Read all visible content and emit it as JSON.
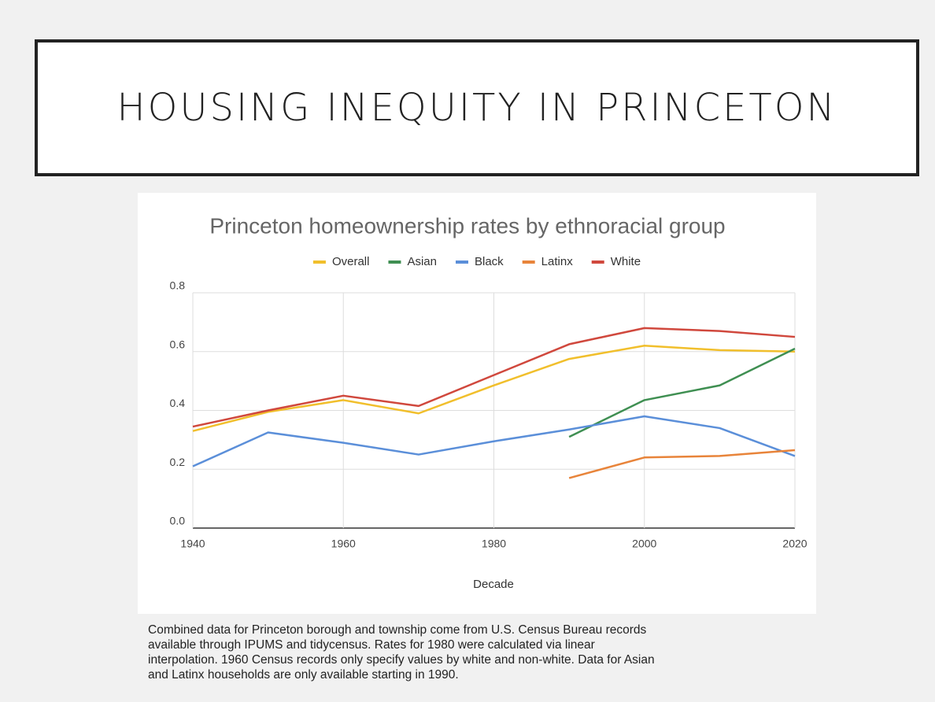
{
  "header": {
    "title": "HOUSING INEQUITY IN PRINCETON"
  },
  "chart_data": {
    "type": "line",
    "title": "Princeton homeownership rates by ethnoracial group",
    "x_label": "Decade",
    "x": [
      1940,
      1950,
      1960,
      1970,
      1980,
      1990,
      2000,
      2010,
      2020
    ],
    "xlim": [
      1940,
      2020
    ],
    "xticks": [
      1940,
      1960,
      1980,
      2000,
      2020
    ],
    "ylim": [
      0,
      0.8
    ],
    "yticks": [
      {
        "value": 0,
        "label": "0.0"
      },
      0.2,
      0.4,
      0.6,
      0.8
    ],
    "grid": true,
    "legend": "top",
    "series": [
      {
        "name": "Overall",
        "color": "#f1bf2c",
        "values": [
          0.33,
          0.395,
          0.435,
          0.39,
          0.485,
          0.575,
          0.62,
          0.605,
          0.6
        ]
      },
      {
        "name": "Asian",
        "color": "#3f8f52",
        "values": [
          null,
          null,
          null,
          null,
          null,
          0.31,
          0.435,
          0.485,
          0.61
        ]
      },
      {
        "name": "Black",
        "color": "#5b8fd9",
        "values": [
          0.21,
          0.325,
          0.29,
          0.25,
          0.295,
          0.335,
          0.38,
          0.34,
          0.245
        ]
      },
      {
        "name": "Latinx",
        "color": "#e8843a",
        "values": [
          null,
          null,
          null,
          null,
          null,
          0.17,
          0.24,
          0.245,
          0.265
        ]
      },
      {
        "name": "White",
        "color": "#d0483d",
        "values": [
          0.345,
          0.4,
          0.45,
          0.415,
          0.52,
          0.625,
          0.68,
          0.67,
          0.65
        ]
      }
    ]
  },
  "caption": {
    "lines": [
      "Combined data for Princeton borough and township come from U.S. Census Bureau records",
      "available through IPUMS and tidycensus. Rates for 1980 were calculated via linear",
      "interpolation. 1960 Census records only specify values by white and non-white. Data for Asian",
      "and Latinx households are only available starting in 1990."
    ]
  }
}
